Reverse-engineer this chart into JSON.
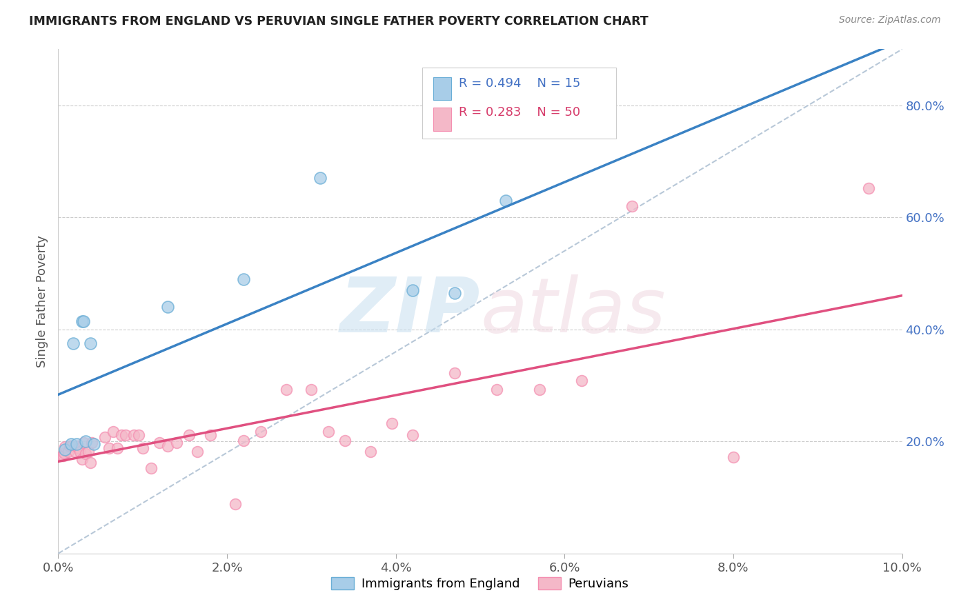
{
  "title": "IMMIGRANTS FROM ENGLAND VS PERUVIAN SINGLE FATHER POVERTY CORRELATION CHART",
  "source": "Source: ZipAtlas.com",
  "ylabel": "Single Father Poverty",
  "ylabel_right_labels": [
    "20.0%",
    "40.0%",
    "60.0%",
    "80.0%"
  ],
  "ylabel_right_positions": [
    0.2,
    0.4,
    0.6,
    0.8
  ],
  "blue_color": "#a8cde8",
  "pink_color": "#f4b8c8",
  "blue_edge_color": "#6aaed6",
  "pink_edge_color": "#f48fb1",
  "blue_line_color": "#3a82c4",
  "pink_line_color": "#e05080",
  "dashed_line_color": "#b8c8d8",
  "england_x": [
    0.0008,
    0.0015,
    0.0018,
    0.0022,
    0.0028,
    0.003,
    0.0032,
    0.0038,
    0.0042,
    0.013,
    0.022,
    0.031,
    0.042,
    0.047,
    0.053
  ],
  "england_y": [
    0.185,
    0.195,
    0.375,
    0.195,
    0.415,
    0.415,
    0.2,
    0.375,
    0.195,
    0.44,
    0.49,
    0.67,
    0.47,
    0.465,
    0.63
  ],
  "peru_x": [
    0.0005,
    0.0006,
    0.0007,
    0.0008,
    0.0012,
    0.0014,
    0.0016,
    0.002,
    0.0022,
    0.0024,
    0.0026,
    0.0028,
    0.003,
    0.0032,
    0.0036,
    0.0038,
    0.004,
    0.0055,
    0.006,
    0.0065,
    0.007,
    0.0075,
    0.008,
    0.009,
    0.0095,
    0.01,
    0.011,
    0.012,
    0.013,
    0.014,
    0.0155,
    0.0165,
    0.018,
    0.021,
    0.022,
    0.024,
    0.027,
    0.03,
    0.032,
    0.034,
    0.037,
    0.0395,
    0.042,
    0.047,
    0.052,
    0.057,
    0.062,
    0.068,
    0.08,
    0.096
  ],
  "peru_y": [
    0.175,
    0.175,
    0.18,
    0.19,
    0.182,
    0.192,
    0.192,
    0.182,
    0.192,
    0.188,
    0.182,
    0.168,
    0.198,
    0.178,
    0.182,
    0.162,
    0.198,
    0.208,
    0.188,
    0.218,
    0.188,
    0.212,
    0.212,
    0.212,
    0.212,
    0.188,
    0.152,
    0.198,
    0.192,
    0.198,
    0.212,
    0.182,
    0.212,
    0.088,
    0.202,
    0.218,
    0.292,
    0.292,
    0.218,
    0.202,
    0.182,
    0.232,
    0.212,
    0.322,
    0.292,
    0.292,
    0.308,
    0.62,
    0.172,
    0.652
  ],
  "xlim": [
    0.0,
    0.1
  ],
  "ylim": [
    0.0,
    0.9
  ],
  "x_ticks": [
    0.0,
    0.02,
    0.04,
    0.06,
    0.08,
    0.1
  ],
  "x_tick_labels": [
    "0.0%",
    "2.0%",
    "4.0%",
    "6.0%",
    "8.0%",
    "10.0%"
  ]
}
